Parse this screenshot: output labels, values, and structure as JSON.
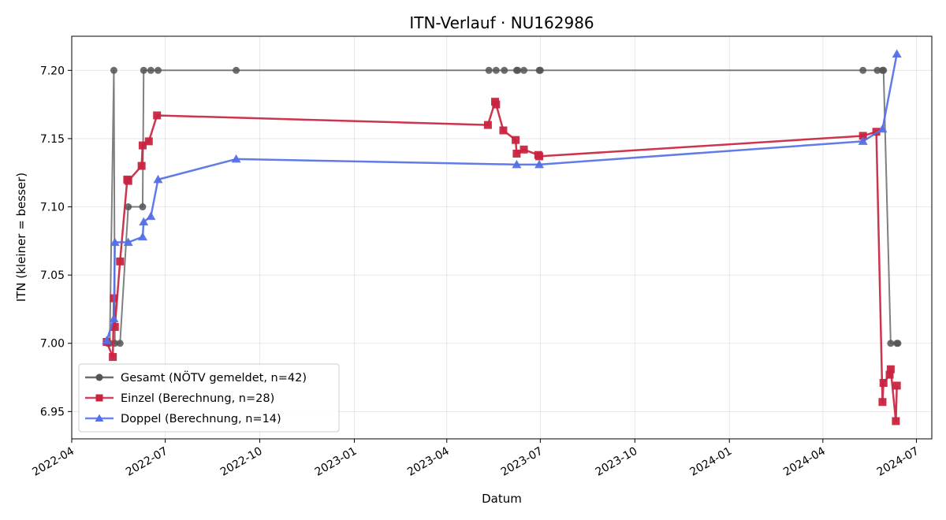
{
  "chart_data": {
    "type": "line",
    "title": "ITN-Verlauf · NU162986",
    "xlabel": "Datum",
    "ylabel": "ITN  (kleiner = besser)",
    "x_axis": "date",
    "xlim": [
      "2022-04-01",
      "2024-07-16"
    ],
    "ylim": [
      6.93,
      7.225
    ],
    "x_ticks": [
      "2022-04",
      "2022-07",
      "2022-10",
      "2023-01",
      "2023-04",
      "2023-07",
      "2023-10",
      "2024-01",
      "2024-04",
      "2024-07"
    ],
    "y_ticks": [
      6.95,
      7.0,
      7.05,
      7.1,
      7.15,
      7.2
    ],
    "grid": true,
    "legend_position": "lower-left",
    "series": [
      {
        "name": "Gesamt (NÖTV gemeldet, n=42)",
        "color": "#555555",
        "marker": "circle",
        "points": [
          {
            "x": "2022-05-06",
            "y": 7.0
          },
          {
            "x": "2022-05-08",
            "y": 7.0
          },
          {
            "x": "2022-05-12",
            "y": 7.2
          },
          {
            "x": "2022-05-13",
            "y": 7.0
          },
          {
            "x": "2022-05-18",
            "y": 7.0
          },
          {
            "x": "2022-05-26",
            "y": 7.1
          },
          {
            "x": "2022-06-09",
            "y": 7.1
          },
          {
            "x": "2022-06-10",
            "y": 7.2
          },
          {
            "x": "2022-06-17",
            "y": 7.2
          },
          {
            "x": "2022-06-24",
            "y": 7.2
          },
          {
            "x": "2022-09-08",
            "y": 7.2
          },
          {
            "x": "2023-05-12",
            "y": 7.2
          },
          {
            "x": "2023-05-19",
            "y": 7.2
          },
          {
            "x": "2023-05-27",
            "y": 7.2
          },
          {
            "x": "2023-06-08",
            "y": 7.2
          },
          {
            "x": "2023-06-09",
            "y": 7.2
          },
          {
            "x": "2023-06-15",
            "y": 7.2
          },
          {
            "x": "2023-06-30",
            "y": 7.2
          },
          {
            "x": "2023-07-01",
            "y": 7.2
          },
          {
            "x": "2024-05-10",
            "y": 7.2
          },
          {
            "x": "2024-05-24",
            "y": 7.2
          },
          {
            "x": "2024-05-29",
            "y": 7.2
          },
          {
            "x": "2024-05-30",
            "y": 7.2
          },
          {
            "x": "2024-06-06",
            "y": 7.0
          },
          {
            "x": "2024-06-12",
            "y": 7.0
          },
          {
            "x": "2024-06-13",
            "y": 7.0
          }
        ]
      },
      {
        "name": "Einzel (Berechnung, n=28)",
        "color": "#c8243f",
        "marker": "square",
        "points": [
          {
            "x": "2022-05-05",
            "y": 7.001
          },
          {
            "x": "2022-05-11",
            "y": 6.99
          },
          {
            "x": "2022-05-12",
            "y": 7.033
          },
          {
            "x": "2022-05-13",
            "y": 7.012
          },
          {
            "x": "2022-05-18",
            "y": 7.06
          },
          {
            "x": "2022-05-25",
            "y": 7.12
          },
          {
            "x": "2022-05-26",
            "y": 7.119
          },
          {
            "x": "2022-06-08",
            "y": 7.13
          },
          {
            "x": "2022-06-09",
            "y": 7.145
          },
          {
            "x": "2022-06-15",
            "y": 7.148
          },
          {
            "x": "2022-06-23",
            "y": 7.167
          },
          {
            "x": "2023-05-11",
            "y": 7.16
          },
          {
            "x": "2023-05-18",
            "y": 7.177
          },
          {
            "x": "2023-05-19",
            "y": 7.175
          },
          {
            "x": "2023-05-26",
            "y": 7.156
          },
          {
            "x": "2023-06-07",
            "y": 7.149
          },
          {
            "x": "2023-06-08",
            "y": 7.139
          },
          {
            "x": "2023-06-15",
            "y": 7.142
          },
          {
            "x": "2023-06-29",
            "y": 7.138
          },
          {
            "x": "2023-06-30",
            "y": 7.137
          },
          {
            "x": "2024-05-10",
            "y": 7.152
          },
          {
            "x": "2024-05-23",
            "y": 7.155
          },
          {
            "x": "2024-05-29",
            "y": 6.957
          },
          {
            "x": "2024-05-30",
            "y": 6.971
          },
          {
            "x": "2024-06-05",
            "y": 6.977
          },
          {
            "x": "2024-06-06",
            "y": 6.981
          },
          {
            "x": "2024-06-11",
            "y": 6.943
          },
          {
            "x": "2024-06-12",
            "y": 6.969
          }
        ]
      },
      {
        "name": "Doppel (Berechnung, n=14)",
        "color": "#5470e6",
        "marker": "triangle",
        "points": [
          {
            "x": "2022-05-05",
            "y": 7.002
          },
          {
            "x": "2022-05-12",
            "y": 7.018
          },
          {
            "x": "2022-05-13",
            "y": 7.074
          },
          {
            "x": "2022-05-26",
            "y": 7.074
          },
          {
            "x": "2022-06-09",
            "y": 7.078
          },
          {
            "x": "2022-06-10",
            "y": 7.089
          },
          {
            "x": "2022-06-17",
            "y": 7.093
          },
          {
            "x": "2022-06-24",
            "y": 7.12
          },
          {
            "x": "2022-09-08",
            "y": 7.135
          },
          {
            "x": "2023-06-08",
            "y": 7.131
          },
          {
            "x": "2023-06-30",
            "y": 7.131
          },
          {
            "x": "2024-05-10",
            "y": 7.148
          },
          {
            "x": "2024-05-29",
            "y": 7.157
          },
          {
            "x": "2024-06-12",
            "y": 7.212
          }
        ]
      }
    ]
  }
}
